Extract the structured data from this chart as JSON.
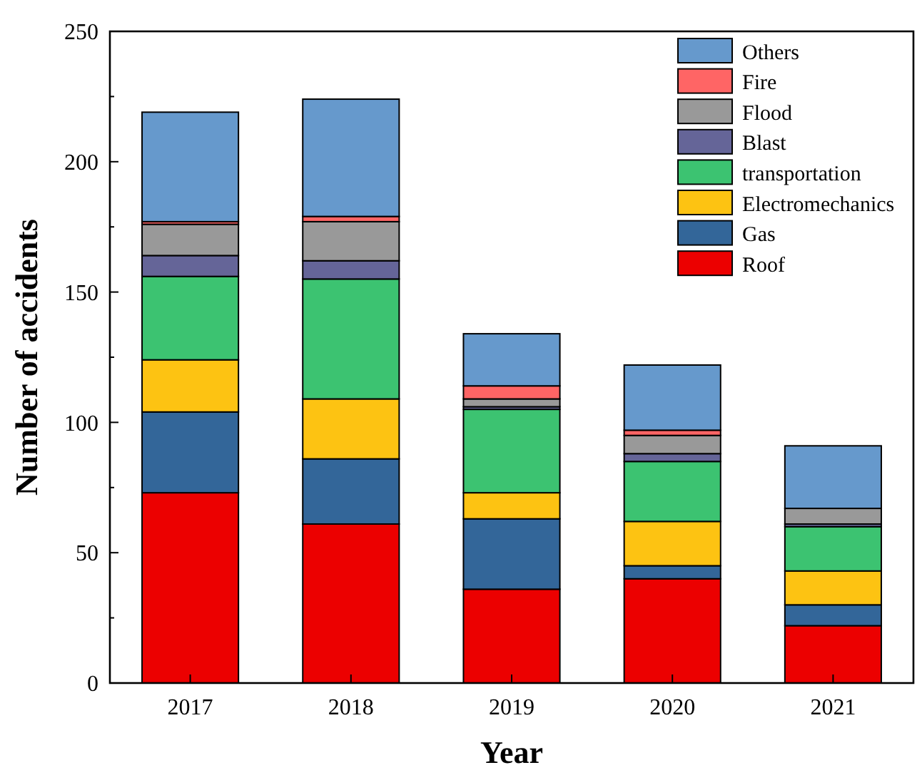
{
  "chart_data": {
    "type": "bar",
    "stacked": true,
    "xlabel": "Year",
    "ylabel": "Number of accidents",
    "categories": [
      "2017",
      "2018",
      "2019",
      "2020",
      "2021"
    ],
    "series": [
      {
        "name": "Roof",
        "color": "#ec0000",
        "values": [
          73,
          61,
          36,
          40,
          22
        ]
      },
      {
        "name": "Gas",
        "color": "#336699",
        "values": [
          31,
          25,
          27,
          5,
          8
        ]
      },
      {
        "name": "Electromechanics",
        "color": "#fdc312",
        "values": [
          20,
          23,
          10,
          17,
          13
        ]
      },
      {
        "name": "transportation",
        "color": "#3cc371",
        "values": [
          32,
          46,
          32,
          23,
          17
        ]
      },
      {
        "name": "Blast",
        "color": "#656598",
        "values": [
          8,
          7,
          1,
          3,
          1
        ]
      },
      {
        "name": "Flood",
        "color": "#999999",
        "values": [
          12,
          15,
          3,
          7,
          6
        ]
      },
      {
        "name": "Fire",
        "color": "#ff6565",
        "values": [
          1,
          2,
          5,
          2,
          0
        ]
      },
      {
        "name": "Others",
        "color": "#6699cc",
        "values": [
          42,
          45,
          20,
          25,
          24
        ]
      }
    ],
    "ylim": [
      0,
      250
    ],
    "yticks": [
      0,
      {
        "value": 25,
        "label": null
      },
      50,
      {
        "value": 75,
        "label": null
      },
      100,
      {
        "value": 125,
        "label": null
      },
      150,
      {
        "value": 175,
        "label": null
      },
      200,
      {
        "value": 225,
        "label": null
      },
      250
    ],
    "grid": false,
    "legend": "top right"
  }
}
